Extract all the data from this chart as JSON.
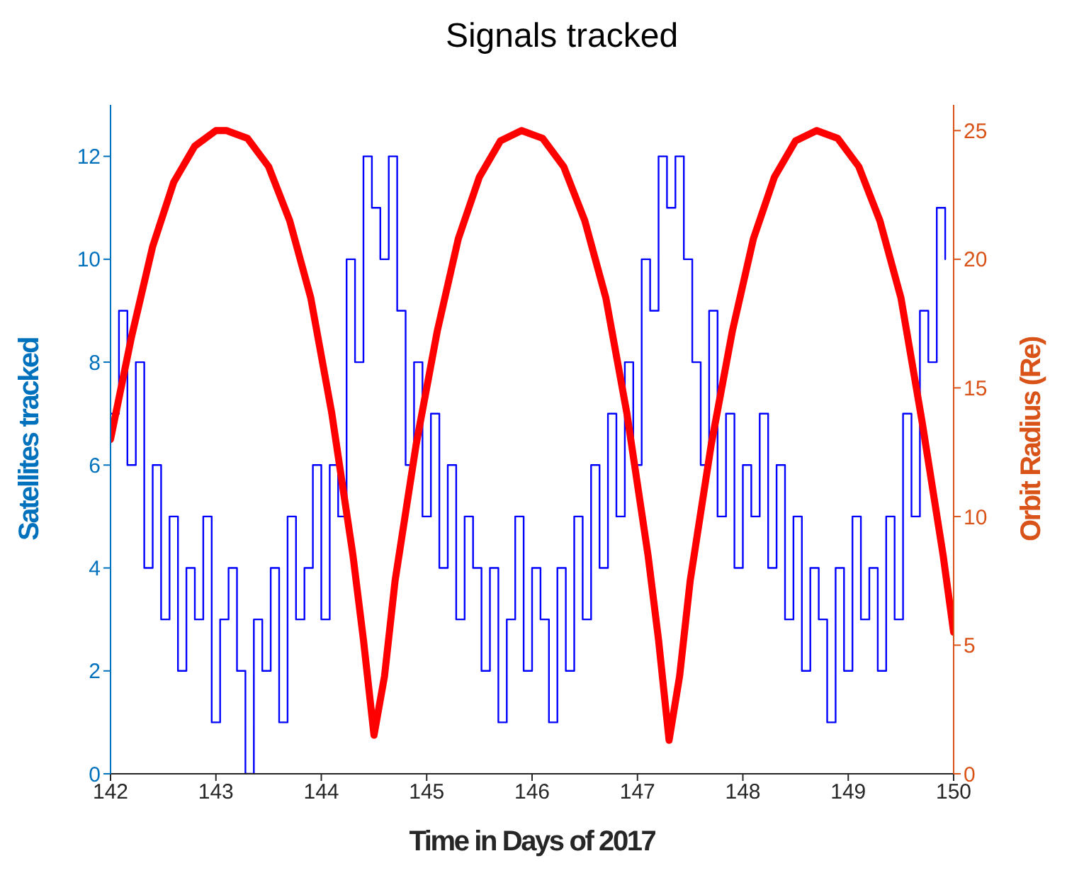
{
  "chart_data": {
    "type": "line",
    "title": "Signals tracked",
    "xlabel": "Time in Days of 2017",
    "ylabel": "Satellites tracked",
    "y2label": "Orbit Radius (Re)",
    "xlim": [
      142,
      150
    ],
    "xticks": [
      142,
      143,
      144,
      145,
      146,
      147,
      148,
      149,
      150
    ],
    "ylim": [
      0,
      13
    ],
    "yticks": [
      0,
      2,
      4,
      6,
      8,
      10,
      12
    ],
    "y2lim": [
      0,
      26
    ],
    "y2ticks": [
      0,
      5,
      10,
      15,
      20,
      25
    ],
    "grid": false,
    "legend": false,
    "marker": "none",
    "series": [
      {
        "type": "step",
        "color": "#0000ff",
        "x": [
          142,
          142.08,
          142.16,
          142.24,
          142.32,
          142.4,
          142.48,
          142.56,
          142.64,
          142.72,
          142.8,
          142.88,
          142.96,
          143.04,
          143.12,
          143.2,
          143.28,
          143.36,
          143.44,
          143.52,
          143.6,
          143.68,
          143.76,
          143.84,
          143.92,
          144,
          144.08,
          144.16,
          144.24,
          144.32,
          144.4,
          144.48,
          144.56,
          144.64,
          144.72,
          144.8,
          144.88,
          144.96,
          145.04,
          145.12,
          145.2,
          145.28,
          145.36,
          145.44,
          145.52,
          145.6,
          145.68,
          145.76,
          145.84,
          145.92,
          146,
          146.08,
          146.16,
          146.24,
          146.32,
          146.4,
          146.48,
          146.56,
          146.64,
          146.72,
          146.8,
          146.88,
          146.96,
          147.04,
          147.12,
          147.2,
          147.28,
          147.36,
          147.44,
          147.52,
          147.6,
          147.68,
          147.76,
          147.84,
          147.92,
          148,
          148.08,
          148.16,
          148.24,
          148.32,
          148.4,
          148.48,
          148.56,
          148.64,
          148.72,
          148.8,
          148.88,
          148.96,
          149.04,
          149.12,
          149.2,
          149.28,
          149.36,
          149.44,
          149.52,
          149.6,
          149.68,
          149.76,
          149.84,
          149.92
        ],
        "values": [
          7,
          9,
          6,
          8,
          4,
          6,
          3,
          5,
          2,
          4,
          3,
          5,
          1,
          3,
          4,
          2,
          0,
          3,
          2,
          4,
          1,
          5,
          3,
          4,
          6,
          3,
          6,
          5,
          10,
          8,
          12,
          11,
          10,
          12,
          9,
          6,
          8,
          5,
          7,
          4,
          6,
          3,
          5,
          4,
          2,
          4,
          1,
          3,
          5,
          2,
          4,
          3,
          1,
          4,
          2,
          5,
          3,
          6,
          4,
          7,
          5,
          8,
          6,
          10,
          9,
          12,
          11,
          12,
          10,
          8,
          6,
          9,
          5,
          7,
          4,
          6,
          5,
          7,
          4,
          6,
          3,
          5,
          2,
          4,
          3,
          1,
          4,
          2,
          5,
          3,
          4,
          2,
          5,
          3,
          7,
          5,
          9,
          8,
          11,
          10
        ]
      },
      {
        "axis": "y2",
        "color": "#ff0000",
        "x": [
          142,
          142.2,
          142.4,
          142.6,
          142.8,
          143,
          143.1,
          143.3,
          143.5,
          143.7,
          143.9,
          144.1,
          144.3,
          144.4,
          144.5,
          144.6,
          144.7,
          144.9,
          145.1,
          145.3,
          145.5,
          145.7,
          145.9,
          146.1,
          146.3,
          146.5,
          146.7,
          146.9,
          147.1,
          147.2,
          147.3,
          147.4,
          147.5,
          147.7,
          147.9,
          148.1,
          148.3,
          148.5,
          148.7,
          148.9,
          149.1,
          149.3,
          149.5,
          149.7,
          149.9,
          150
        ],
        "values": [
          13,
          17,
          20.5,
          23,
          24.4,
          25,
          25,
          24.7,
          23.6,
          21.5,
          18.5,
          14,
          8.5,
          5.2,
          1.5,
          3.8,
          7.5,
          12.8,
          17.2,
          20.8,
          23.2,
          24.6,
          25,
          24.7,
          23.6,
          21.5,
          18.5,
          14,
          8.5,
          5.2,
          1.3,
          3.8,
          7.5,
          12.8,
          17.2,
          20.8,
          23.2,
          24.6,
          25,
          24.7,
          23.6,
          21.5,
          18.5,
          13.7,
          8.5,
          5.5
        ]
      }
    ]
  }
}
